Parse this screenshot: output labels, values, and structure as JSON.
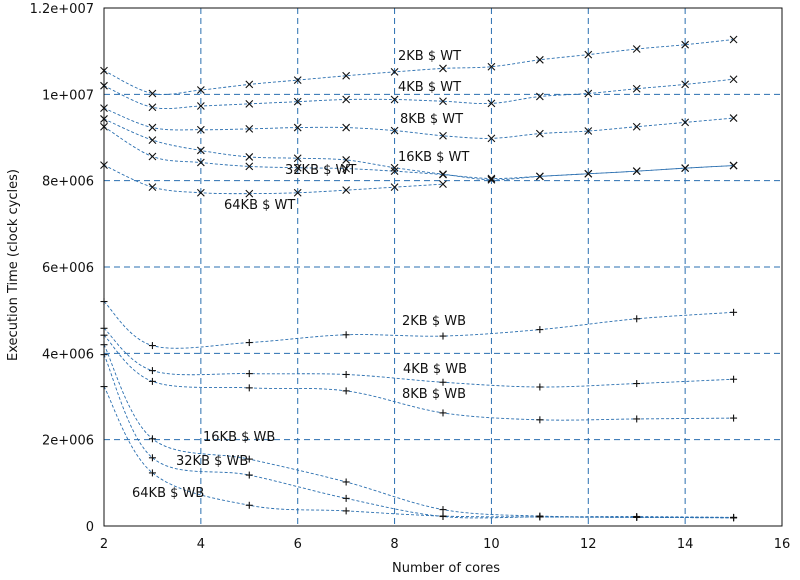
{
  "chart_data": {
    "type": "line",
    "xlabel": "Number of cores",
    "ylabel": "Execution Time (clock cycles)",
    "xlim": [
      2,
      16
    ],
    "ylim": [
      0,
      12000000
    ],
    "x_ticks": [
      2,
      4,
      6,
      8,
      10,
      12,
      14,
      16
    ],
    "y_ticks": [
      0,
      2000000,
      4000000,
      6000000,
      8000000,
      10000000,
      12000000
    ],
    "y_tick_labels": [
      "0",
      "2e+006",
      "4e+006",
      "6e+006",
      "8e+006",
      "1e+007",
      "1.2e+007"
    ],
    "grid": true,
    "series": [
      {
        "name": "2KB $ WT",
        "marker": "x",
        "x": [
          2,
          3,
          4,
          5,
          6,
          7,
          8,
          9,
          10,
          11,
          12,
          13,
          14,
          15
        ],
        "y": [
          10550000,
          10020000,
          10100000,
          10230000,
          10330000,
          10430000,
          10520000,
          10600000,
          10640000,
          10800000,
          10920000,
          11050000,
          11150000,
          11270000
        ]
      },
      {
        "name": "4KB $ WT",
        "marker": "x",
        "x": [
          2,
          3,
          4,
          5,
          6,
          7,
          8,
          9,
          10,
          11,
          12,
          13,
          14,
          15
        ],
        "y": [
          10200000,
          9700000,
          9730000,
          9780000,
          9830000,
          9880000,
          9880000,
          9840000,
          9790000,
          9950000,
          10020000,
          10130000,
          10230000,
          10350000
        ]
      },
      {
        "name": "8KB $ WT",
        "marker": "x",
        "x": [
          2,
          3,
          4,
          5,
          6,
          7,
          8,
          9,
          10,
          11,
          12,
          13,
          14,
          15
        ],
        "y": [
          9680000,
          9230000,
          9180000,
          9200000,
          9230000,
          9230000,
          9160000,
          9040000,
          8980000,
          9090000,
          9150000,
          9250000,
          9350000,
          9450000
        ]
      },
      {
        "name": "16KB $ WT",
        "marker": "x",
        "x": [
          2,
          3,
          4,
          5,
          6,
          7,
          8,
          9,
          10,
          11,
          12,
          13,
          14,
          15
        ],
        "y": [
          9430000,
          8940000,
          8700000,
          8550000,
          8520000,
          8480000,
          8300000,
          8150000,
          8020000,
          8100000,
          8160000,
          8220000,
          8290000,
          8350000
        ]
      },
      {
        "name": "32KB $ WT",
        "marker": "x",
        "x": [
          2,
          3,
          4,
          5,
          6,
          7,
          8,
          9,
          10,
          11,
          12,
          13,
          14,
          15
        ],
        "y": [
          9250000,
          8560000,
          8420000,
          8330000,
          8300000,
          8280000,
          8220000,
          8140000,
          8050000,
          8100000,
          8160000,
          8220000,
          8290000,
          8350000
        ]
      },
      {
        "name": "64KB $ WT",
        "marker": "x",
        "x": [
          2,
          3,
          4,
          5,
          6,
          7,
          8,
          9
        ],
        "y": [
          8360000,
          7850000,
          7720000,
          7700000,
          7720000,
          7780000,
          7850000,
          7920000
        ]
      },
      {
        "name": "2KB $ WB",
        "marker": "+",
        "x": [
          2,
          3,
          5,
          7,
          9,
          11,
          13,
          15
        ],
        "y": [
          5200000,
          4180000,
          4250000,
          4430000,
          4400000,
          4550000,
          4800000,
          4950000
        ]
      },
      {
        "name": "4KB $ WB",
        "marker": "+",
        "x": [
          2,
          3,
          5,
          7,
          9,
          11,
          13,
          15
        ],
        "y": [
          4580000,
          3600000,
          3530000,
          3510000,
          3330000,
          3220000,
          3300000,
          3400000
        ]
      },
      {
        "name": "8KB $ WB",
        "marker": "+",
        "x": [
          2,
          3,
          5,
          7,
          9,
          11,
          13,
          15
        ],
        "y": [
          4420000,
          3350000,
          3200000,
          3130000,
          2620000,
          2460000,
          2480000,
          2500000
        ]
      },
      {
        "name": "16KB $ WB",
        "marker": "+",
        "x": [
          2,
          3,
          5,
          7,
          9,
          11,
          13,
          15
        ],
        "y": [
          4200000,
          2020000,
          1550000,
          1020000,
          380000,
          230000,
          220000,
          200000
        ]
      },
      {
        "name": "32KB $ WB",
        "marker": "+",
        "x": [
          2,
          3,
          5,
          7,
          9,
          11,
          13,
          15
        ],
        "y": [
          3970000,
          1580000,
          1180000,
          640000,
          220000,
          210000,
          200000,
          190000
        ]
      },
      {
        "name": "64KB $ WB",
        "marker": "+",
        "x": [
          2,
          3,
          5,
          7,
          9,
          11,
          13,
          15
        ],
        "y": [
          3230000,
          1230000,
          480000,
          350000,
          230000,
          210000,
          200000,
          190000
        ]
      }
    ]
  },
  "colors": {
    "grid": "#2a6fb0",
    "curve": "#2a6fb0",
    "marker": "#111111"
  }
}
